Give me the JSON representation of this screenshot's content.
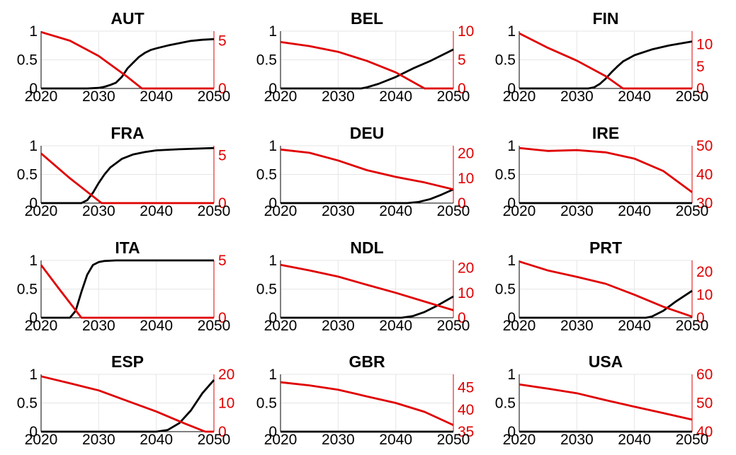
{
  "colors": {
    "left_series": "#000000",
    "right_series": "#e00000",
    "grid": "#e6e6e6"
  },
  "chart_data": [
    {
      "type": "line",
      "title": "AUT",
      "xlim": [
        2020,
        2050
      ],
      "xticks": [
        "2020",
        "2030",
        "2040",
        "2050"
      ],
      "ylim_left": [
        0,
        1
      ],
      "yticks_left": [
        "0",
        "0.5",
        "1"
      ],
      "ylim_right": [
        0,
        6
      ],
      "yticks_right": [
        "0",
        "5"
      ],
      "grid": true,
      "series": [
        {
          "axis": "left",
          "color": "#000000",
          "x": [
            2020,
            2028,
            2030,
            2031,
            2032,
            2033,
            2034,
            2035,
            2036,
            2037,
            2038,
            2039,
            2040,
            2042,
            2044,
            2046,
            2048,
            2050
          ],
          "values": [
            0,
            0,
            0.01,
            0.03,
            0.06,
            0.1,
            0.2,
            0.35,
            0.45,
            0.55,
            0.62,
            0.67,
            0.7,
            0.75,
            0.79,
            0.83,
            0.85,
            0.86
          ]
        },
        {
          "axis": "right",
          "color": "#e00000",
          "x": [
            2020,
            2025,
            2030,
            2035,
            2037.5,
            2050
          ],
          "values": [
            5.9,
            5.0,
            3.4,
            1.2,
            0,
            0
          ]
        }
      ]
    },
    {
      "type": "line",
      "title": "BEL",
      "xlim": [
        2020,
        2050
      ],
      "xticks": [
        "2020",
        "2030",
        "2040",
        "2050"
      ],
      "ylim_left": [
        0,
        1
      ],
      "yticks_left": [
        "0",
        "0.5",
        "1"
      ],
      "ylim_right": [
        0,
        10
      ],
      "yticks_right": [
        "0",
        "5",
        "10"
      ],
      "grid": true,
      "series": [
        {
          "axis": "left",
          "color": "#000000",
          "x": [
            2020,
            2034,
            2035,
            2037,
            2040,
            2043,
            2046,
            2050
          ],
          "values": [
            0,
            0,
            0.02,
            0.08,
            0.2,
            0.35,
            0.48,
            0.68
          ]
        },
        {
          "axis": "right",
          "color": "#e00000",
          "x": [
            2020,
            2025,
            2030,
            2035,
            2040,
            2045,
            2050
          ],
          "values": [
            8.1,
            7.4,
            6.4,
            4.8,
            2.8,
            0,
            0
          ]
        }
      ]
    },
    {
      "type": "line",
      "title": "FIN",
      "xlim": [
        2020,
        2050
      ],
      "xticks": [
        "2020",
        "2030",
        "2040",
        "2050"
      ],
      "ylim_left": [
        0,
        1
      ],
      "yticks_left": [
        "0",
        "0.5",
        "1"
      ],
      "ylim_right": [
        0,
        13
      ],
      "yticks_right": [
        "0",
        "5",
        "10"
      ],
      "grid": true,
      "series": [
        {
          "axis": "left",
          "color": "#000000",
          "x": [
            2020,
            2032,
            2033,
            2034,
            2035,
            2036,
            2037,
            2038,
            2040,
            2043,
            2046,
            2050
          ],
          "values": [
            0,
            0,
            0.02,
            0.08,
            0.17,
            0.28,
            0.38,
            0.47,
            0.58,
            0.68,
            0.75,
            0.82
          ]
        },
        {
          "axis": "right",
          "color": "#e00000",
          "x": [
            2020,
            2025,
            2030,
            2035,
            2038,
            2050
          ],
          "values": [
            12.5,
            9.2,
            6.3,
            2.8,
            0,
            0
          ]
        }
      ]
    },
    {
      "type": "line",
      "title": "FRA",
      "xlim": [
        2020,
        2050
      ],
      "xticks": [
        "2020",
        "2030",
        "2040",
        "2050"
      ],
      "ylim_left": [
        0,
        1
      ],
      "yticks_left": [
        "0",
        "0.5",
        "1"
      ],
      "ylim_right": [
        0,
        6
      ],
      "yticks_right": [
        "0",
        "5"
      ],
      "grid": true,
      "series": [
        {
          "axis": "left",
          "color": "#000000",
          "x": [
            2020,
            2027,
            2028,
            2029,
            2030,
            2031,
            2032,
            2034,
            2036,
            2038,
            2040,
            2044,
            2050
          ],
          "values": [
            0,
            0,
            0.05,
            0.18,
            0.35,
            0.5,
            0.62,
            0.77,
            0.85,
            0.89,
            0.92,
            0.94,
            0.96
          ]
        },
        {
          "axis": "right",
          "color": "#e00000",
          "x": [
            2020,
            2025,
            2030.5,
            2050
          ],
          "values": [
            5.2,
            2.6,
            0,
            0
          ]
        }
      ]
    },
    {
      "type": "line",
      "title": "DEU",
      "xlim": [
        2020,
        2050
      ],
      "xticks": [
        "2020",
        "2030",
        "2040",
        "2050"
      ],
      "ylim_left": [
        0,
        1
      ],
      "yticks_left": [
        "0",
        "0.5",
        "1"
      ],
      "ylim_right": [
        0,
        23
      ],
      "yticks_right": [
        "0",
        "10",
        "20"
      ],
      "grid": true,
      "series": [
        {
          "axis": "left",
          "color": "#000000",
          "x": [
            2020,
            2042,
            2044,
            2046,
            2048,
            2050
          ],
          "values": [
            0,
            0,
            0.02,
            0.07,
            0.15,
            0.24
          ]
        },
        {
          "axis": "right",
          "color": "#e00000",
          "x": [
            2020,
            2025,
            2030,
            2035,
            2040,
            2045,
            2050
          ],
          "values": [
            21.5,
            20.2,
            17.1,
            13.2,
            10.5,
            8.3,
            5.5
          ]
        }
      ]
    },
    {
      "type": "line",
      "title": "IRE",
      "xlim": [
        2020,
        2050
      ],
      "xticks": [
        "2020",
        "2030",
        "2040",
        "2050"
      ],
      "ylim_left": [
        0,
        1
      ],
      "yticks_left": [
        "0",
        "0.5",
        "1"
      ],
      "ylim_right": [
        30,
        50
      ],
      "yticks_right": [
        "30",
        "40",
        "50"
      ],
      "grid": true,
      "series": [
        {
          "axis": "left",
          "color": "#000000",
          "x": [
            2020,
            2050
          ],
          "values": [
            0,
            0
          ]
        },
        {
          "axis": "right",
          "color": "#e00000",
          "x": [
            2020,
            2025,
            2030,
            2035,
            2040,
            2045,
            2050
          ],
          "values": [
            49.2,
            48.2,
            48.5,
            47.7,
            45.5,
            41.2,
            33.8
          ]
        }
      ]
    },
    {
      "type": "line",
      "title": "ITA",
      "xlim": [
        2020,
        2050
      ],
      "xticks": [
        "2020",
        "2030",
        "2040",
        "2050"
      ],
      "ylim_left": [
        0,
        1
      ],
      "yticks_left": [
        "0",
        "0.5",
        "1"
      ],
      "ylim_right": [
        0,
        5
      ],
      "yticks_right": [
        "0",
        "5"
      ],
      "grid": true,
      "series": [
        {
          "axis": "left",
          "color": "#000000",
          "x": [
            2020,
            2025,
            2026,
            2027,
            2028,
            2029,
            2030,
            2031,
            2033,
            2050
          ],
          "values": [
            0,
            0,
            0.12,
            0.45,
            0.75,
            0.92,
            0.97,
            0.99,
            1.0,
            1.0
          ]
        },
        {
          "axis": "right",
          "color": "#e00000",
          "x": [
            2020,
            2023,
            2027,
            2050
          ],
          "values": [
            4.6,
            2.6,
            0,
            0
          ]
        }
      ]
    },
    {
      "type": "line",
      "title": "NDL",
      "xlim": [
        2020,
        2050
      ],
      "xticks": [
        "2020",
        "2030",
        "2040",
        "2050"
      ],
      "ylim_left": [
        0,
        1
      ],
      "yticks_left": [
        "0",
        "0.5",
        "1"
      ],
      "ylim_right": [
        0,
        23
      ],
      "yticks_right": [
        "0",
        "10",
        "20"
      ],
      "grid": true,
      "series": [
        {
          "axis": "left",
          "color": "#000000",
          "x": [
            2020,
            2041,
            2043,
            2045,
            2047,
            2050
          ],
          "values": [
            0,
            0,
            0.03,
            0.1,
            0.2,
            0.37
          ]
        },
        {
          "axis": "right",
          "color": "#e00000",
          "x": [
            2020,
            2025,
            2030,
            2035,
            2040,
            2045,
            2050
          ],
          "values": [
            21.2,
            19.0,
            16.5,
            13.2,
            10.0,
            6.5,
            3.0
          ]
        }
      ]
    },
    {
      "type": "line",
      "title": "PRT",
      "xlim": [
        2020,
        2050
      ],
      "xticks": [
        "2020",
        "2030",
        "2040",
        "2050"
      ],
      "ylim_left": [
        0,
        1
      ],
      "yticks_left": [
        "0",
        "0.5",
        "1"
      ],
      "ylim_right": [
        0,
        25
      ],
      "yticks_right": [
        "0",
        "10",
        "20"
      ],
      "grid": true,
      "series": [
        {
          "axis": "left",
          "color": "#000000",
          "x": [
            2020,
            2042,
            2043,
            2045,
            2047,
            2050
          ],
          "values": [
            0,
            0,
            0.02,
            0.12,
            0.27,
            0.47
          ]
        },
        {
          "axis": "right",
          "color": "#e00000",
          "x": [
            2020,
            2025,
            2030,
            2035,
            2040,
            2045,
            2050
          ],
          "values": [
            24.5,
            20.6,
            17.8,
            14.8,
            10.0,
            4.8,
            0.5
          ]
        }
      ]
    },
    {
      "type": "line",
      "title": "ESP",
      "xlim": [
        2020,
        2050
      ],
      "xticks": [
        "2020",
        "2030",
        "2040",
        "2050"
      ],
      "ylim_left": [
        0,
        1
      ],
      "yticks_left": [
        "0",
        "0.5",
        "1"
      ],
      "ylim_right": [
        0,
        20
      ],
      "yticks_right": [
        "0",
        "10",
        "20"
      ],
      "grid": true,
      "series": [
        {
          "axis": "left",
          "color": "#000000",
          "x": [
            2020,
            2040,
            2042,
            2044,
            2046,
            2048,
            2050
          ],
          "values": [
            0,
            0,
            0.03,
            0.15,
            0.37,
            0.67,
            0.9
          ]
        },
        {
          "axis": "right",
          "color": "#e00000",
          "x": [
            2020,
            2025,
            2030,
            2035,
            2040,
            2045,
            2048.5,
            2050
          ],
          "values": [
            19.3,
            16.9,
            14.4,
            10.7,
            7.0,
            2.8,
            0,
            0
          ]
        }
      ]
    },
    {
      "type": "line",
      "title": "GBR",
      "xlim": [
        2020,
        2050
      ],
      "xticks": [
        "2020",
        "2030",
        "2040",
        "2050"
      ],
      "ylim_left": [
        0,
        1
      ],
      "yticks_left": [
        "0",
        "0.5",
        "1"
      ],
      "ylim_right": [
        35,
        48
      ],
      "yticks_right": [
        "35",
        "40",
        "45"
      ],
      "grid": true,
      "series": [
        {
          "axis": "left",
          "color": "#000000",
          "x": [
            2020,
            2050
          ],
          "values": [
            0,
            0
          ]
        },
        {
          "axis": "right",
          "color": "#e00000",
          "x": [
            2020,
            2025,
            2030,
            2035,
            2040,
            2045,
            2050
          ],
          "values": [
            46.2,
            45.5,
            44.5,
            43.0,
            41.5,
            39.5,
            36.5
          ]
        }
      ]
    },
    {
      "type": "line",
      "title": "USA",
      "xlim": [
        2020,
        2050
      ],
      "xticks": [
        "2020",
        "2030",
        "2040",
        "2050"
      ],
      "ylim_left": [
        0,
        1
      ],
      "yticks_left": [
        "0",
        "0.5",
        "1"
      ],
      "ylim_right": [
        40,
        60
      ],
      "yticks_right": [
        "40",
        "50",
        "60"
      ],
      "grid": true,
      "series": [
        {
          "axis": "left",
          "color": "#000000",
          "x": [
            2020,
            2050
          ],
          "values": [
            0,
            0
          ]
        },
        {
          "axis": "right",
          "color": "#e00000",
          "x": [
            2020,
            2025,
            2030,
            2035,
            2040,
            2045,
            2050
          ],
          "values": [
            56.5,
            55.0,
            53.4,
            51.0,
            48.7,
            46.5,
            44.2
          ]
        }
      ]
    }
  ]
}
